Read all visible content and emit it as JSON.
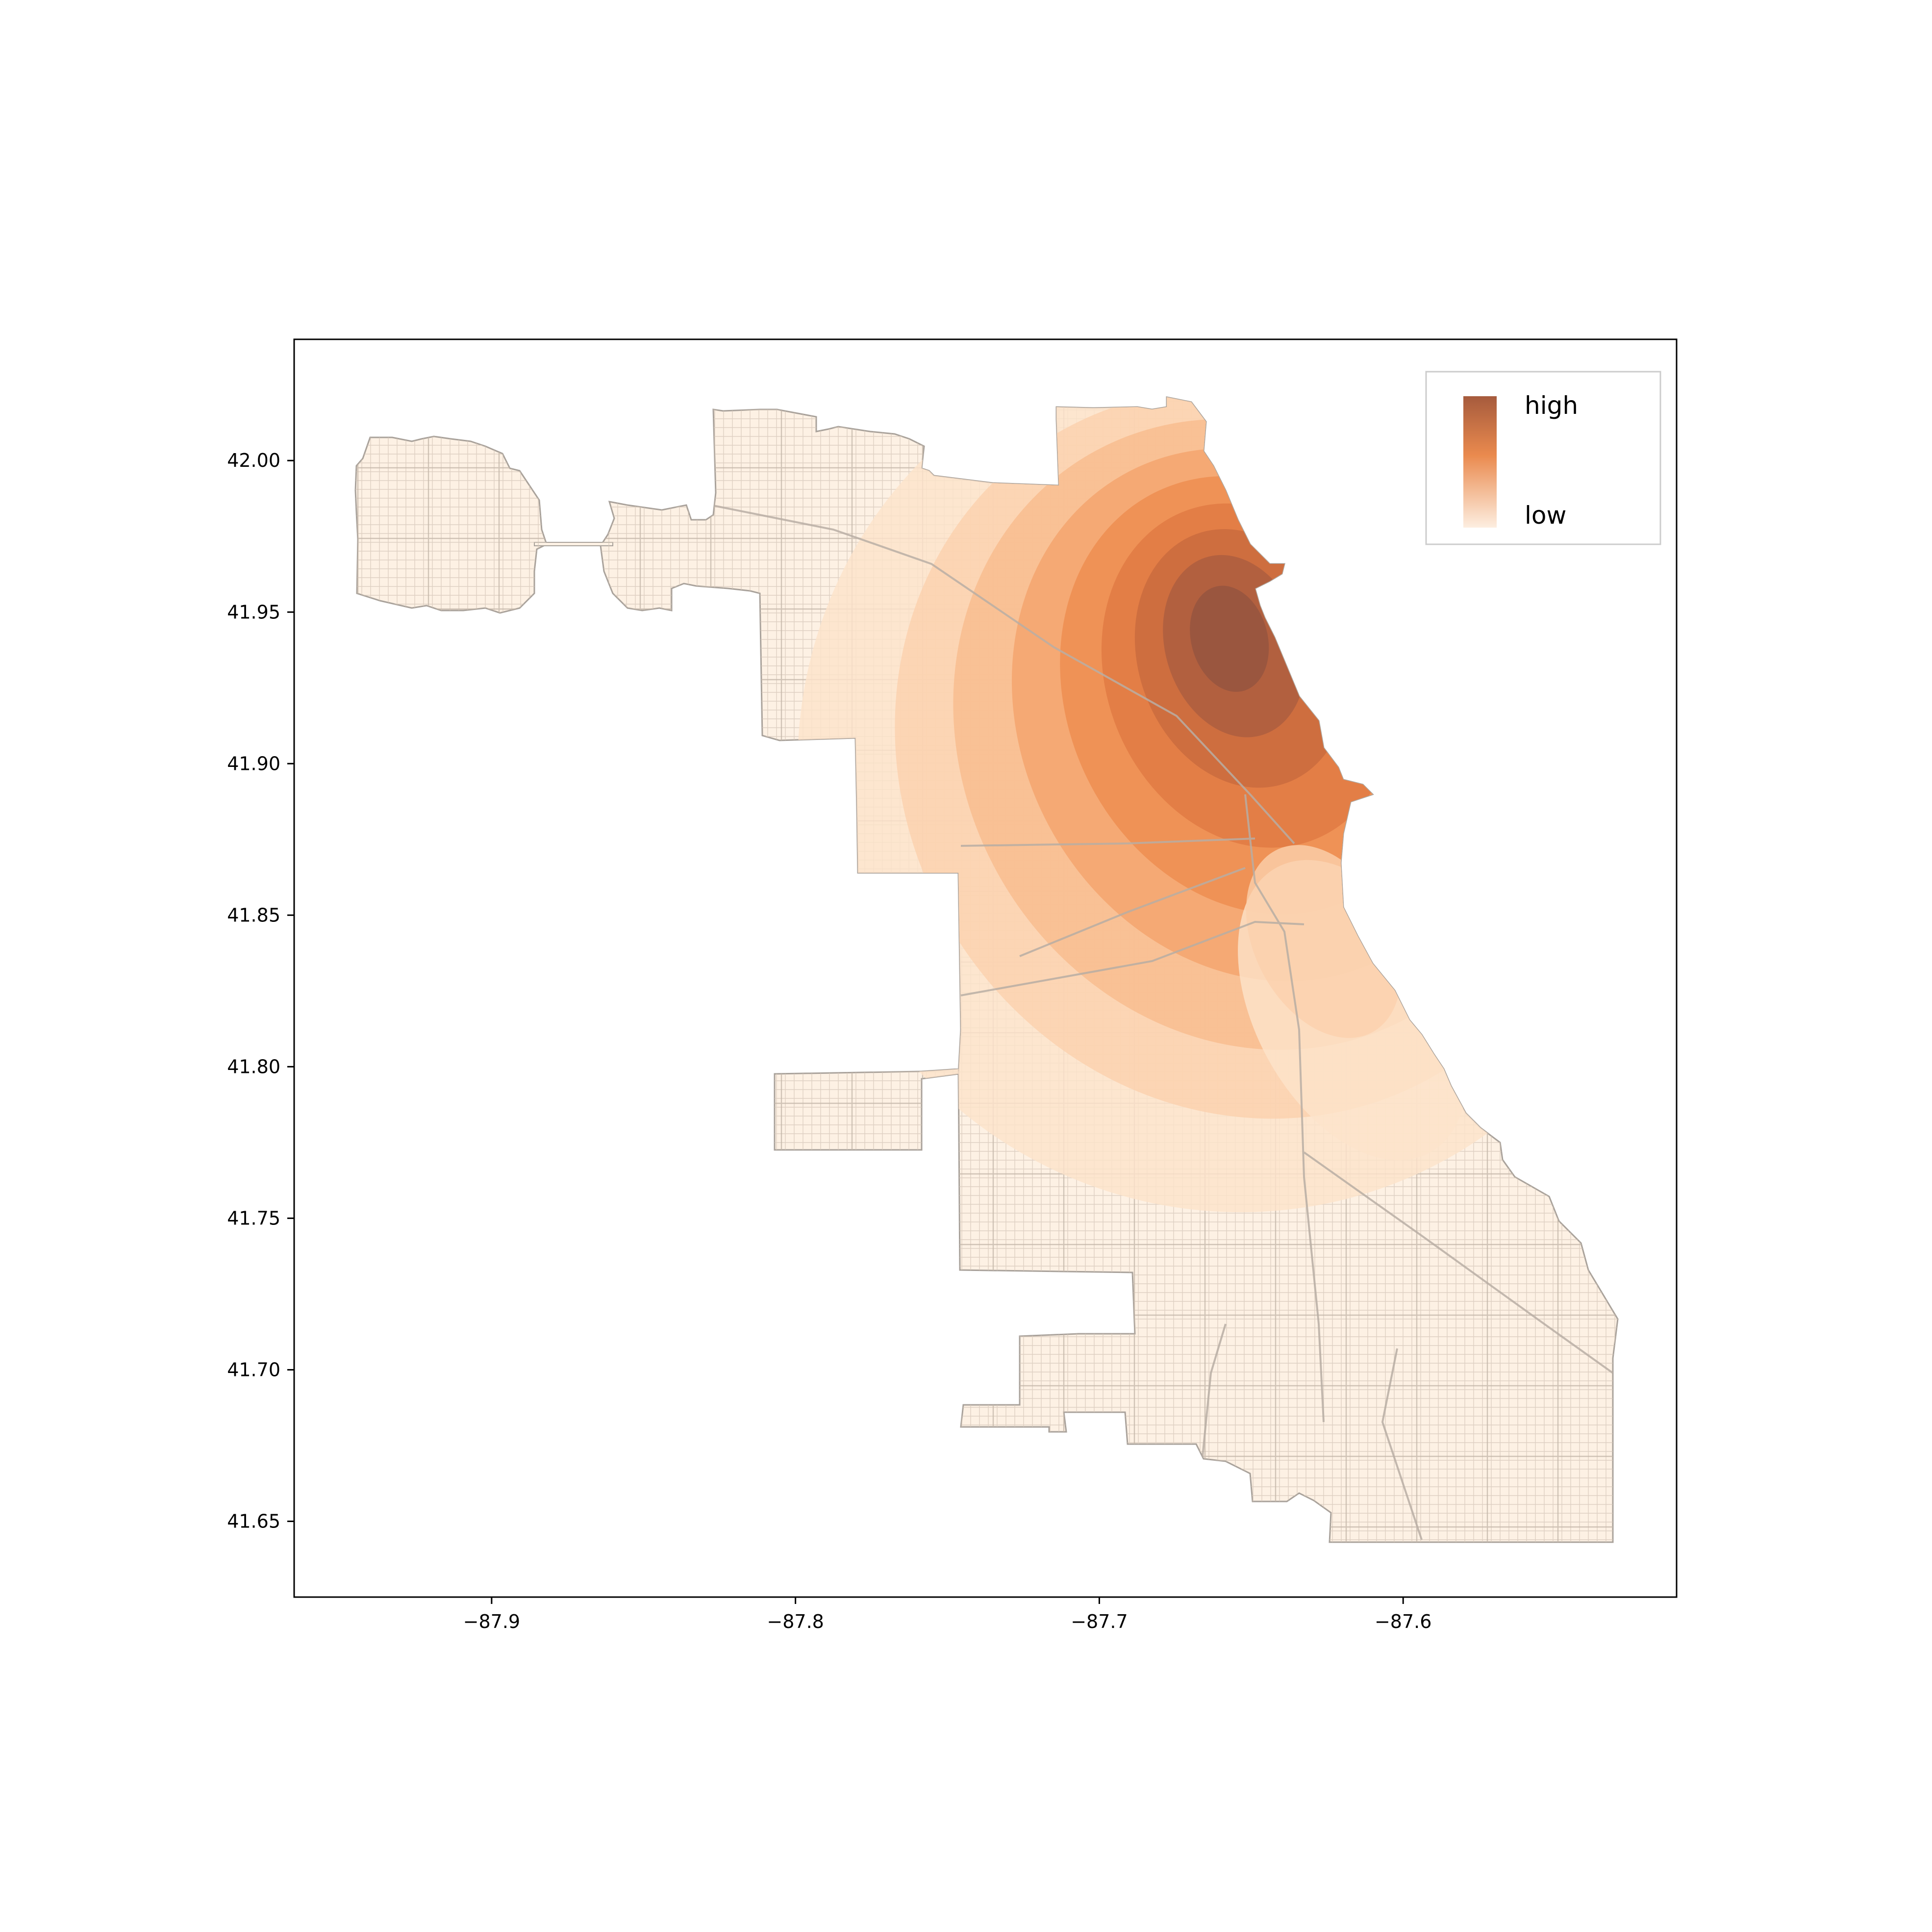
{
  "chart_data": {
    "type": "heatmap",
    "title": "",
    "xlabel": "",
    "ylabel": "",
    "xlim": [
      -87.965,
      -87.51
    ],
    "ylim": [
      41.625,
      42.04
    ],
    "x_ticks": [
      {
        "value": -87.9,
        "label": "−87.9"
      },
      {
        "value": -87.8,
        "label": "−87.8"
      },
      {
        "value": -87.7,
        "label": "−87.7"
      },
      {
        "value": -87.6,
        "label": "−87.6"
      }
    ],
    "y_ticks": [
      {
        "value": 42.0,
        "label": "42.00"
      },
      {
        "value": 41.95,
        "label": "41.95"
      },
      {
        "value": 41.9,
        "label": "41.90"
      },
      {
        "value": 41.85,
        "label": "41.85"
      },
      {
        "value": 41.8,
        "label": "41.80"
      },
      {
        "value": 41.75,
        "label": "41.75"
      },
      {
        "value": 41.7,
        "label": "41.70"
      },
      {
        "value": 41.65,
        "label": "41.65"
      }
    ],
    "legend": {
      "placement": "top-right",
      "high_label": "high",
      "low_label": "low"
    },
    "density_peak": {
      "lon": -87.658,
      "lat": 41.942
    },
    "colors": {
      "land": "#fdf1e4",
      "boundary": "#a9a29b",
      "streets": "#d4c6b8",
      "axes": "#000000",
      "levels": [
        "#fde3cb",
        "#fbd1ad",
        "#f8bc8d",
        "#f4a46c",
        "#ee8c4f",
        "#e07a43",
        "#c96a3e",
        "#ac5d3f",
        "#955440"
      ]
    }
  }
}
